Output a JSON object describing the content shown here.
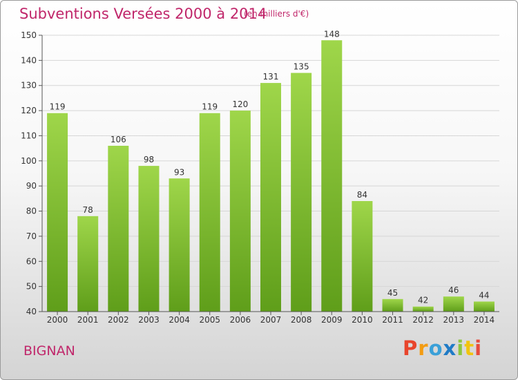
{
  "header": {
    "title": "Subventions Versées 2000 à 2014",
    "unit": "(en milliers d'€)"
  },
  "footer": {
    "location": "BIGNAN",
    "brand_letters": [
      "P",
      "r",
      "o",
      "x",
      "i",
      "t",
      "i"
    ],
    "brand_colors": [
      "#e8452c",
      "#f39c12",
      "#3aa0d8",
      "#1f7bc6",
      "#8cc63f",
      "#f1c40f",
      "#e74c3c"
    ]
  },
  "colors": {
    "bar_top": "#9fd64a",
    "bar_bottom": "#5f9e1a",
    "grid": "#d6d6d6",
    "axis": "#555555",
    "title": "#c0266a"
  },
  "chart_data": {
    "type": "bar",
    "categories": [
      "2000",
      "2001",
      "2002",
      "2003",
      "2004",
      "2005",
      "2006",
      "2007",
      "2008",
      "2009",
      "2010",
      "2011",
      "2012",
      "2013",
      "2014"
    ],
    "values": [
      119,
      78,
      106,
      98,
      93,
      119,
      120,
      131,
      135,
      148,
      84,
      45,
      42,
      46,
      44
    ],
    "ylim": [
      40,
      150
    ],
    "yticks": [
      40,
      50,
      60,
      70,
      80,
      90,
      100,
      110,
      120,
      130,
      140,
      150
    ],
    "grid": true,
    "title": "Subventions Versées 2000 à 2014",
    "xlabel": "",
    "ylabel": ""
  }
}
